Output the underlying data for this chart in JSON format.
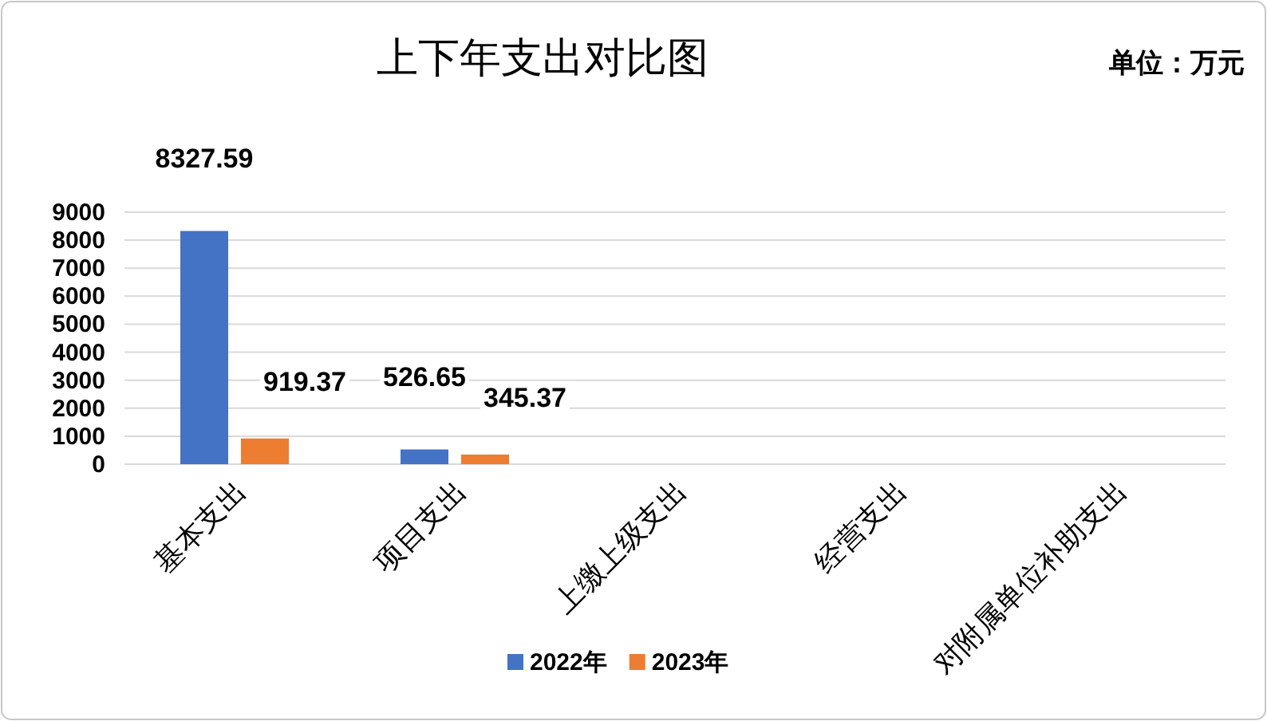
{
  "chart_data": {
    "type": "bar",
    "title": "上下年支出对比图",
    "annotations": [
      "单位：万元"
    ],
    "categories": [
      "基本支出",
      "项目支出",
      "上缴上级支出",
      "经营支出",
      "对附属单位补助支出"
    ],
    "series": [
      {
        "name": "2022年",
        "color": "#4472c4",
        "values": [
          8327.59,
          526.65,
          0,
          0,
          0
        ],
        "value_labels": [
          "8327.59",
          "526.65",
          null,
          null,
          null
        ]
      },
      {
        "name": "2023年",
        "color": "#ed7d31",
        "values": [
          919.37,
          345.37,
          0,
          0,
          0
        ],
        "value_labels": [
          "919.37",
          "345.37",
          null,
          null,
          null
        ]
      }
    ],
    "ylim": [
      0,
      9000
    ],
    "yticks": [
      0,
      1000,
      2000,
      3000,
      4000,
      5000,
      6000,
      7000,
      8000,
      9000
    ],
    "grid": "y",
    "legend": "bottom"
  }
}
